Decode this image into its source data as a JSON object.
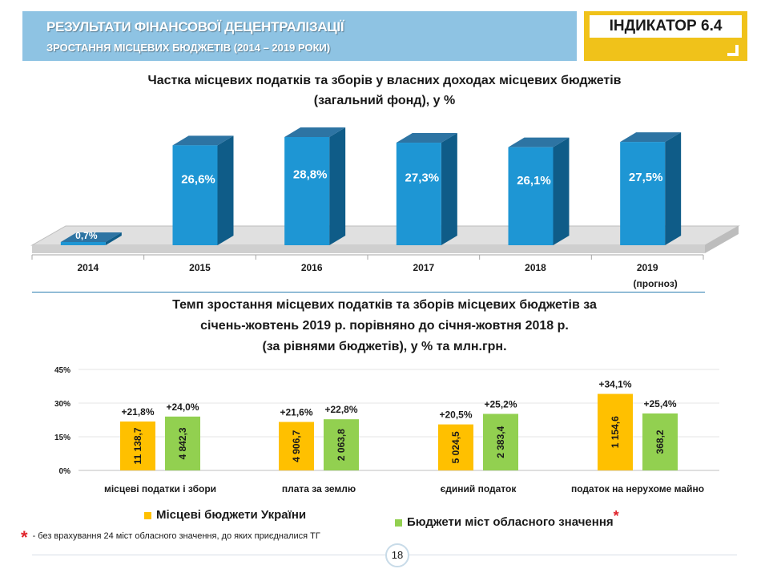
{
  "header": {
    "title": "РЕЗУЛЬТАТИ ФІНАНСОВОЇ ДЕЦЕНТРАЛІЗАЦІЇ",
    "subtitle": "ЗРОСТАННЯ МІСЦЕВИХ БЮДЖЕТІВ (2014 – 2019 РОКИ)",
    "indicator": "ІНДИКАТОР 6.4",
    "accent_color": "#f0c21a",
    "bar_color": "#8ec3e3"
  },
  "chart1": {
    "title_line1": "Частка місцевих податків та зборів у власних доходах місцевих бюджетів",
    "title_line2": "(загальний фонд), у %"
  },
  "chart2": {
    "title_line1": "Темп зростання місцевих податків та зборів місцевих бюджетів за",
    "title_line2": "січень-жовтень 2019 р. порівняно до січня-жовтня 2018 р.",
    "title_line3": "(за рівнями бюджетів), у % та млн.грн."
  },
  "legend": {
    "item1": "Місцеві бюджети України",
    "item2": "Бюджети міст обласного значення",
    "star": "*"
  },
  "footnote": {
    "star": "*",
    "text": "- без врахування 24 міст обласного значення, до яких приєдналися ТГ"
  },
  "page_number": "18",
  "chart_data": [
    {
      "type": "bar",
      "categories": [
        "2014",
        "2015",
        "2016",
        "2017",
        "2018",
        "2019"
      ],
      "category_sublabels": [
        "",
        "",
        "",
        "",
        "",
        "(прогноз)"
      ],
      "values": [
        0.7,
        26.6,
        28.8,
        27.3,
        26.1,
        27.5
      ],
      "value_labels": [
        "0,7%",
        "26,6%",
        "28,8%",
        "27,3%",
        "26,1%",
        "27,5%"
      ],
      "color": "#1e96d4",
      "title": "Частка місцевих податків та зборів у власних доходах місцевих бюджетів (загальний фонд), у %",
      "ylim": [
        0,
        32
      ],
      "grid": false,
      "style": "3d"
    },
    {
      "type": "bar",
      "categories": [
        "місцеві податки і збори",
        "плата за землю",
        "єдиний податок",
        "податок на нерухоме майно"
      ],
      "series": [
        {
          "name": "Місцеві бюджети України",
          "color": "#ffc000",
          "values": [
            21.8,
            21.6,
            20.5,
            34.1
          ],
          "growth_labels": [
            "+21,8%",
            "+21,6%",
            "+20,5%",
            "+34,1%"
          ],
          "amount_labels": [
            "11 138,7",
            "4 906,7",
            "5 024,5",
            "1 154,6"
          ]
        },
        {
          "name": "Бюджети міст обласного значення",
          "color": "#92d050",
          "values": [
            24.0,
            22.8,
            25.2,
            25.4
          ],
          "growth_labels": [
            "+24,0%",
            "+22,8%",
            "+25,2%",
            "+25,4%"
          ],
          "amount_labels": [
            "4 842,3",
            "2 063,8",
            "2 383,4",
            "368,2"
          ]
        }
      ],
      "ylim": [
        0,
        45
      ],
      "yticks": [
        0,
        15,
        30,
        45
      ],
      "ytick_labels": [
        "0%",
        "15%",
        "30%",
        "45%"
      ],
      "grid": true,
      "legend": "bottom"
    }
  ]
}
